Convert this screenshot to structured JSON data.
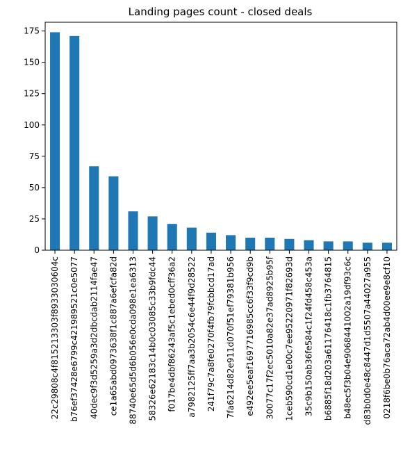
{
  "chart_data": {
    "type": "bar",
    "title": "Landing pages count - closed deals",
    "xlabel": "",
    "ylabel": "",
    "categories": [
      "22c29808c4f815213303f8933030604c",
      "b76ef37428e6799c421989521c0e5077",
      "40dec9f3d5259a3d2dbcdab2114fae47",
      "ce1a65abd0973638f1c887a6efcfa82d",
      "88740e65d5d6b056e0cda098e1ea6313",
      "58326e62183c14b0c03085c33b9fdc44",
      "f017be4dbf86243af5c1ebed0cff36a2",
      "a7982125ff7aa3b2054c6e44f9d28522",
      "241f79c7a8fe0270f4fb79fcbbcd17ad",
      "7fa6214d82e911d070f51ef79381b956",
      "e492ee5eaf1697716985cc6f33f9cd9b",
      "30077c17f2ec5010a82e37ad8925b95f",
      "1ceb590cd1e00c7ee95220971f82693d",
      "35c9b150ab36fe584c1f24fd458c453a",
      "b6885f18d203a61176418c1fb3764815",
      "b48ec5f3b04e9068441002a19df93c6c",
      "d83b0d0e48c8447d1d5507a44027a955",
      "0218f6be0b76aca72ab4d00ee9e8cf10"
    ],
    "values": [
      174,
      171,
      67,
      59,
      31,
      27,
      21,
      18,
      14,
      12,
      10,
      10,
      9,
      8,
      7,
      7,
      6,
      6
    ],
    "ylim": [
      0,
      182
    ],
    "yticks": [
      0,
      25,
      50,
      75,
      100,
      125,
      150,
      175
    ],
    "grid": false,
    "legend": "none",
    "bar_color": "#1f77b4"
  }
}
